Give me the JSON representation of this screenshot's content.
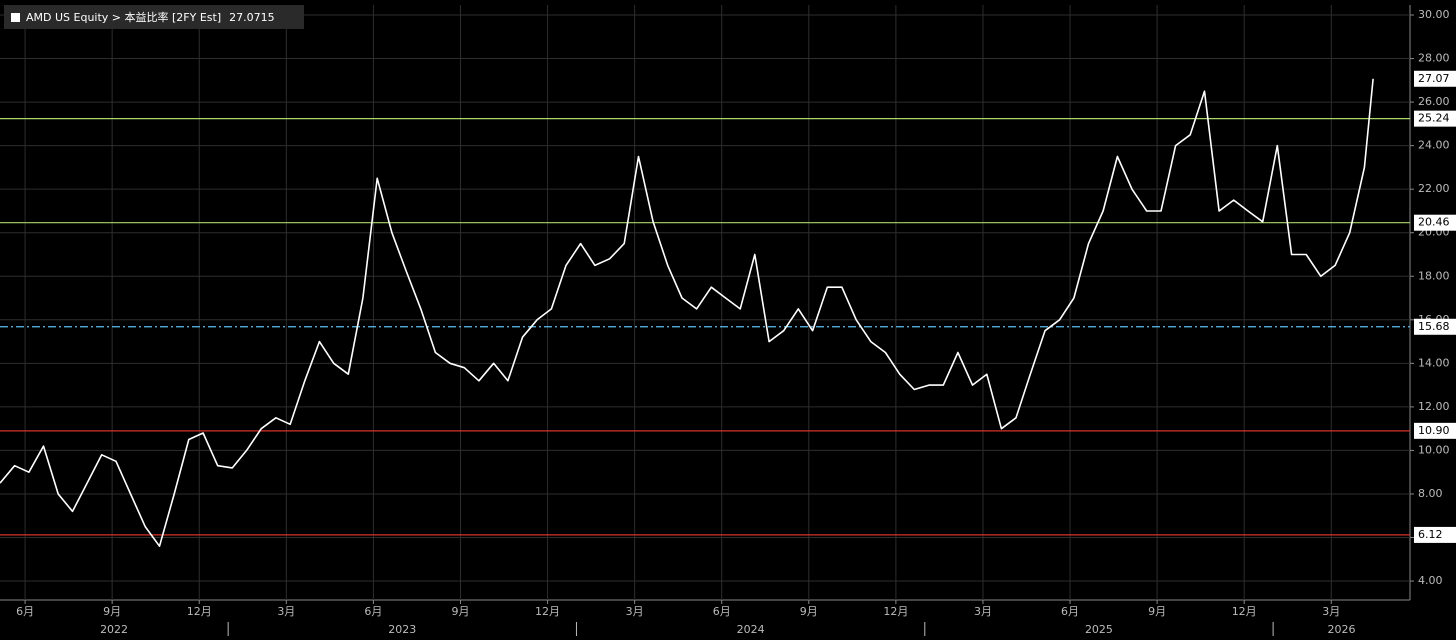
{
  "chart_data": {
    "type": "line",
    "series": [
      {
        "name": "AMD US Equity > 本益比率 [2FY Est]",
        "color": "#ffffff",
        "x": [
          2022.345,
          2022.387,
          2022.428,
          2022.47,
          2022.512,
          2022.553,
          2022.595,
          2022.637,
          2022.678,
          2022.72,
          2022.762,
          2022.803,
          2022.845,
          2022.887,
          2022.928,
          2022.97,
          2023.012,
          2023.053,
          2023.095,
          2023.137,
          2023.178,
          2023.22,
          2023.262,
          2023.303,
          2023.345,
          2023.387,
          2023.428,
          2023.47,
          2023.512,
          2023.553,
          2023.595,
          2023.637,
          2023.678,
          2023.72,
          2023.762,
          2023.803,
          2023.845,
          2023.887,
          2023.928,
          2023.97,
          2024.012,
          2024.053,
          2024.095,
          2024.137,
          2024.178,
          2024.22,
          2024.262,
          2024.303,
          2024.345,
          2024.387,
          2024.428,
          2024.47,
          2024.512,
          2024.553,
          2024.595,
          2024.637,
          2024.678,
          2024.72,
          2024.762,
          2024.803,
          2024.845,
          2024.887,
          2024.928,
          2024.97,
          2025.012,
          2025.053,
          2025.095,
          2025.137,
          2025.178,
          2025.22,
          2025.262,
          2025.303,
          2025.345,
          2025.387,
          2025.428,
          2025.47,
          2025.512,
          2025.553,
          2025.595,
          2025.637,
          2025.678,
          2025.72,
          2025.762,
          2025.803,
          2025.845,
          2025.887,
          2025.928,
          2025.97,
          2026.012,
          2026.053,
          2026.095,
          2026.137,
          2026.178,
          2026.22,
          2026.262,
          2026.287
        ],
        "values": [
          8.5,
          9.3,
          9.0,
          10.2,
          8.0,
          7.2,
          8.5,
          9.8,
          9.5,
          8.0,
          6.5,
          5.6,
          8.0,
          10.5,
          10.8,
          9.3,
          9.2,
          10.0,
          11.0,
          11.5,
          11.2,
          13.2,
          15.0,
          14.0,
          13.5,
          17.0,
          22.5,
          20.0,
          18.2,
          16.5,
          14.5,
          14.0,
          13.8,
          13.2,
          14.0,
          13.2,
          15.2,
          16.0,
          16.5,
          18.5,
          19.5,
          18.5,
          18.8,
          19.5,
          23.5,
          20.5,
          18.5,
          17.0,
          16.5,
          17.5,
          17.0,
          16.5,
          19.0,
          15.0,
          15.5,
          16.5,
          15.5,
          17.5,
          17.5,
          16.0,
          15.0,
          14.5,
          13.5,
          12.8,
          13.0,
          13.0,
          14.5,
          13.0,
          13.5,
          11.0,
          11.5,
          13.5,
          15.5,
          16.0,
          17.0,
          19.5,
          21.0,
          23.5,
          22.0,
          21.0,
          21.0,
          24.0,
          24.5,
          26.5,
          21.0,
          21.5,
          21.0,
          20.5,
          24.0,
          19.0,
          19.0,
          18.0,
          18.5,
          20.0,
          23.0,
          27.0715
        ],
        "last_label": "27.07"
      }
    ],
    "hlines": [
      {
        "value": 25.24,
        "color": "#a8d86a",
        "style": "solid"
      },
      {
        "value": 20.46,
        "color": "#a8d86a",
        "style": "solid"
      },
      {
        "value": 15.68,
        "color": "#5bc0f0",
        "style": "dashdot"
      },
      {
        "value": 10.9,
        "label": "10.90",
        "color": "#d8322a",
        "style": "solid"
      },
      {
        "value": 6.12,
        "color": "#d8322a",
        "style": "solid"
      }
    ],
    "xlim": [
      2022.345,
      2026.393
    ],
    "ylim": [
      3.13,
      30.46
    ],
    "yticks": [
      {
        "value": 4,
        "label": "4.00"
      },
      {
        "value": 6,
        "label": "6.00"
      },
      {
        "value": 8,
        "label": "8.00"
      },
      {
        "value": 10,
        "label": "10.00"
      },
      {
        "value": 12,
        "label": "12.00"
      },
      {
        "value": 14,
        "label": "14.00"
      },
      {
        "value": 16,
        "label": "16.00"
      },
      {
        "value": 18,
        "label": "18.00"
      },
      {
        "value": 20,
        "label": "20.00"
      },
      {
        "value": 22,
        "label": "22.00"
      },
      {
        "value": 24,
        "label": "24.00"
      },
      {
        "value": 26,
        "label": "26.00"
      },
      {
        "value": 28,
        "label": "28.00"
      },
      {
        "value": 30,
        "label": "30.00"
      }
    ],
    "xticks": [
      {
        "value": 2022.417,
        "label": "6月"
      },
      {
        "value": 2022.667,
        "label": "9月"
      },
      {
        "value": 2022.917,
        "label": "12月"
      },
      {
        "value": 2023.167,
        "label": "3月"
      },
      {
        "value": 2023.417,
        "label": "6月"
      },
      {
        "value": 2023.667,
        "label": "9月"
      },
      {
        "value": 2023.917,
        "label": "12月"
      },
      {
        "value": 2024.167,
        "label": "3月"
      },
      {
        "value": 2024.417,
        "label": "6月"
      },
      {
        "value": 2024.667,
        "label": "9月"
      },
      {
        "value": 2024.917,
        "label": "12月"
      },
      {
        "value": 2025.167,
        "label": "3月"
      },
      {
        "value": 2025.417,
        "label": "6月"
      },
      {
        "value": 2025.667,
        "label": "9月"
      },
      {
        "value": 2025.917,
        "label": "12月"
      },
      {
        "value": 2026.167,
        "label": "3月"
      }
    ],
    "xticks_major": [
      2022,
      2023,
      2024,
      2025,
      2026
    ],
    "grid": true
  }
}
